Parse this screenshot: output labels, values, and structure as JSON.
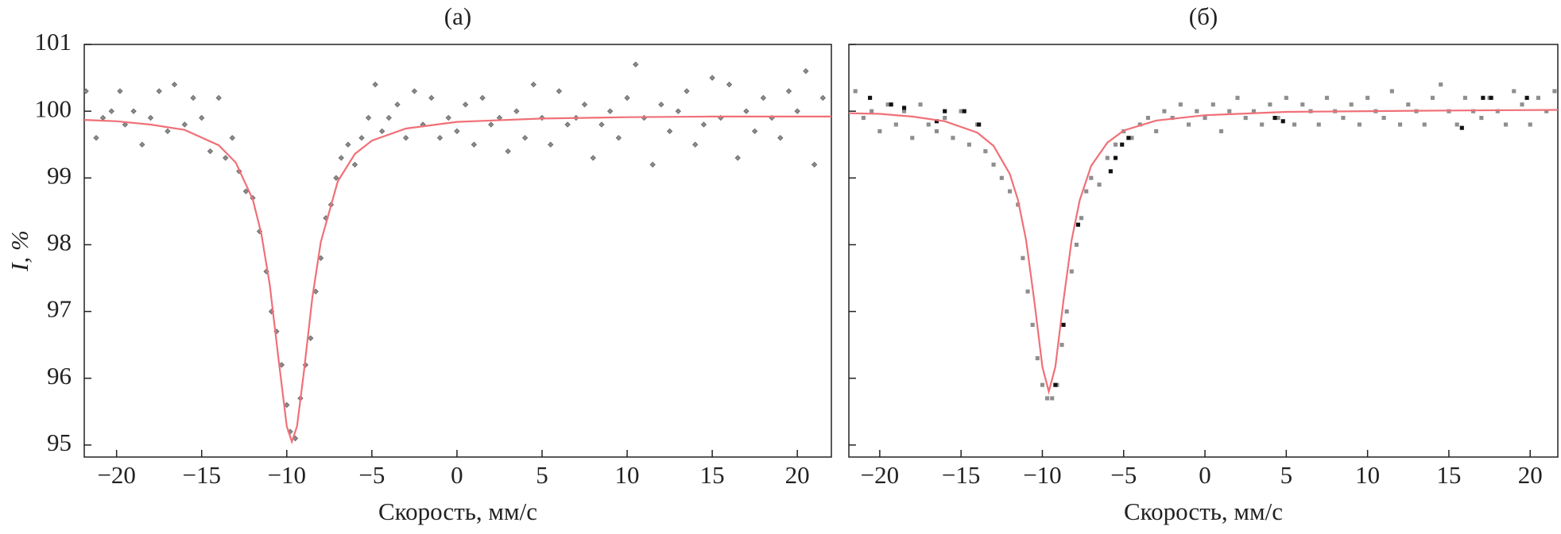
{
  "chart_data": [
    {
      "type": "scatter",
      "title": "(а)",
      "x_label": "Скорость, мм/с",
      "y_label": "I, %",
      "xlim": [
        -21.9,
        22
      ],
      "ylim": [
        94.82,
        101.0
      ],
      "xticks": [
        {
          "value": -20,
          "label": "−20"
        },
        {
          "value": -15,
          "label": "−15"
        },
        {
          "value": -10,
          "label": "−10"
        },
        {
          "value": -5,
          "label": "−5"
        },
        0,
        5,
        10,
        15,
        20
      ],
      "yticks": [
        95,
        96,
        97,
        98,
        99,
        100,
        101
      ],
      "ytick_labels": true,
      "series": [
        {
          "mode": "markers",
          "marker": "diamond",
          "color": "#8a8a8a",
          "x": [
            -21.8,
            -21.2,
            -20.8,
            -20.3,
            -19.8,
            -19.5,
            -19.0,
            -18.5,
            -18.0,
            -17.5,
            -17.0,
            -16.6,
            -16.0,
            -15.5,
            -15.0,
            -14.5,
            -14.0,
            -13.6,
            -13.2,
            -12.8,
            -12.4,
            -12.0,
            -11.6,
            -11.2,
            -10.9,
            -10.6,
            -10.3,
            -10.0,
            -9.8,
            -9.5,
            -9.2,
            -8.9,
            -8.6,
            -8.3,
            -8.0,
            -7.7,
            -7.4,
            -7.1,
            -6.8,
            -6.4,
            -6.0,
            -5.6,
            -5.2,
            -4.8,
            -4.4,
            -4.0,
            -3.5,
            -3.0,
            -2.5,
            -2.0,
            -1.5,
            -1.0,
            -0.5,
            0.0,
            0.5,
            1.0,
            1.5,
            2.0,
            2.5,
            3.0,
            3.5,
            4.0,
            4.5,
            5.0,
            5.5,
            6.0,
            6.5,
            7.0,
            7.5,
            8.0,
            8.5,
            9.0,
            9.5,
            10.0,
            10.5,
            11.0,
            11.5,
            12.0,
            12.5,
            13.0,
            13.5,
            14.0,
            14.5,
            15.0,
            15.5,
            16.0,
            16.5,
            17.0,
            17.5,
            18.0,
            18.5,
            19.0,
            19.5,
            20.0,
            20.5,
            21.0,
            21.5
          ],
          "values": [
            100.3,
            99.6,
            99.9,
            100.0,
            100.3,
            99.8,
            100.0,
            99.5,
            99.9,
            100.3,
            99.7,
            100.4,
            99.8,
            100.2,
            99.9,
            99.4,
            100.2,
            99.3,
            99.6,
            99.1,
            98.8,
            98.7,
            98.2,
            97.6,
            97.0,
            96.7,
            96.2,
            95.6,
            95.2,
            95.1,
            95.7,
            96.2,
            96.6,
            97.3,
            97.8,
            98.4,
            98.6,
            99.0,
            99.3,
            99.5,
            99.2,
            99.6,
            99.9,
            100.4,
            99.7,
            99.9,
            100.1,
            99.6,
            100.3,
            99.8,
            100.2,
            99.6,
            99.9,
            99.7,
            100.1,
            99.5,
            100.2,
            99.8,
            99.9,
            99.4,
            100.0,
            99.6,
            100.4,
            99.9,
            99.5,
            100.3,
            99.8,
            99.9,
            100.1,
            99.3,
            99.8,
            100.0,
            99.6,
            100.2,
            100.7,
            99.9,
            99.2,
            100.1,
            99.7,
            100.0,
            100.3,
            99.5,
            99.8,
            100.5,
            99.9,
            100.4,
            99.3,
            100.0,
            99.7,
            100.2,
            99.9,
            99.6,
            100.3,
            100.0,
            100.6,
            99.2,
            100.2
          ]
        },
        {
          "mode": "line",
          "color": "#f07078",
          "x": [
            -21.9,
            -20,
            -18,
            -16,
            -14,
            -13,
            -12,
            -11.5,
            -11,
            -10.5,
            -10,
            -9.7,
            -9.4,
            -9,
            -8.5,
            -8,
            -7,
            -6,
            -5,
            -3,
            0,
            5,
            10,
            15,
            22
          ],
          "values": [
            99.87,
            99.85,
            99.8,
            99.72,
            99.49,
            99.23,
            98.68,
            98.17,
            97.4,
            96.32,
            95.28,
            95.05,
            95.28,
            96.08,
            97.2,
            98.04,
            98.95,
            99.36,
            99.56,
            99.74,
            99.84,
            99.89,
            99.91,
            99.92,
            99.92
          ]
        }
      ]
    },
    {
      "type": "scatter",
      "title": "(б)",
      "x_label": "Скорость, мм/с",
      "xlim": [
        -21.9,
        21.7
      ],
      "ylim": [
        94.82,
        101.0
      ],
      "xticks": [
        {
          "value": -20,
          "label": "−20"
        },
        {
          "value": -15,
          "label": "−15"
        },
        {
          "value": -10,
          "label": "−10"
        },
        {
          "value": -5,
          "label": "−5"
        },
        0,
        5,
        10,
        15,
        20
      ],
      "yticks": [
        95,
        96,
        97,
        98,
        99,
        100,
        101
      ],
      "ytick_labels": false,
      "series": [
        {
          "mode": "markers",
          "marker": "square",
          "color": "#8e8e8e",
          "x": [
            -21.5,
            -21.0,
            -20.5,
            -20.0,
            -19.5,
            -19.0,
            -18.5,
            -18.0,
            -17.5,
            -17.0,
            -16.5,
            -16.0,
            -15.5,
            -15.0,
            -14.5,
            -14.0,
            -13.5,
            -13.0,
            -12.5,
            -12.0,
            -11.5,
            -11.2,
            -10.9,
            -10.6,
            -10.3,
            -10.0,
            -9.7,
            -9.4,
            -9.1,
            -8.8,
            -8.5,
            -8.2,
            -7.9,
            -7.6,
            -7.3,
            -7.0,
            -6.5,
            -6.0,
            -5.5,
            -5.0,
            -4.5,
            -4.0,
            -3.5,
            -3.0,
            -2.5,
            -2.0,
            -1.5,
            -1.0,
            -0.5,
            0.0,
            0.5,
            1.0,
            1.5,
            2.0,
            2.5,
            3.0,
            3.5,
            4.0,
            4.5,
            5.0,
            5.5,
            6.0,
            6.5,
            7.0,
            7.5,
            8.0,
            8.5,
            9.0,
            9.5,
            10.0,
            10.5,
            11.0,
            11.5,
            12.0,
            12.5,
            13.0,
            13.5,
            14.0,
            14.5,
            15.0,
            15.5,
            16.0,
            16.5,
            17.0,
            17.5,
            18.0,
            18.5,
            19.0,
            19.5,
            20.0,
            20.5,
            21.0,
            21.5
          ],
          "values": [
            100.3,
            99.9,
            100.0,
            99.7,
            100.1,
            99.8,
            100.0,
            99.6,
            100.1,
            99.8,
            99.7,
            99.9,
            99.6,
            100.0,
            99.5,
            99.8,
            99.4,
            99.2,
            99.0,
            98.8,
            98.6,
            97.8,
            97.3,
            96.8,
            96.3,
            95.9,
            95.7,
            95.7,
            95.9,
            96.5,
            97.0,
            97.6,
            98.0,
            98.4,
            98.8,
            99.0,
            98.9,
            99.3,
            99.5,
            99.7,
            99.6,
            99.8,
            99.9,
            99.7,
            100.0,
            99.9,
            100.1,
            99.8,
            100.0,
            99.9,
            100.1,
            99.7,
            100.0,
            100.2,
            99.9,
            100.0,
            99.8,
            100.1,
            99.9,
            100.2,
            99.8,
            100.1,
            100.0,
            99.8,
            100.2,
            100.0,
            99.9,
            100.1,
            99.8,
            100.2,
            100.0,
            99.9,
            100.3,
            99.8,
            100.1,
            100.0,
            99.8,
            100.2,
            100.4,
            100.0,
            99.8,
            100.2,
            100.0,
            99.9,
            100.2,
            100.0,
            99.8,
            100.3,
            100.1,
            99.8,
            100.2,
            100.0,
            100.3
          ]
        },
        {
          "mode": "markers",
          "marker": "square",
          "color": "#111111",
          "x": [
            -20.6,
            -19.3,
            -18.5,
            -16.5,
            -16.0,
            -14.8,
            -13.9,
            -9.2,
            -8.7,
            -7.8,
            -5.8,
            -5.5,
            -5.1,
            -4.7,
            4.3,
            4.8,
            15.8,
            17.1,
            17.6,
            19.8
          ],
          "values": [
            100.2,
            100.1,
            100.05,
            99.85,
            100.0,
            100.0,
            99.8,
            95.9,
            96.8,
            98.3,
            99.1,
            99.3,
            99.5,
            99.6,
            99.9,
            99.85,
            99.75,
            100.2,
            100.2,
            100.2
          ]
        },
        {
          "mode": "line",
          "color": "#f07078",
          "x": [
            -21.9,
            -20,
            -18,
            -16,
            -14,
            -13,
            -12,
            -11.5,
            -11,
            -10.5,
            -10,
            -9.6,
            -9.2,
            -8.7,
            -8.2,
            -7.7,
            -7,
            -6,
            -5,
            -3,
            0,
            5,
            10,
            15,
            21.7
          ],
          "values": [
            99.97,
            99.96,
            99.92,
            99.85,
            99.68,
            99.48,
            99.06,
            98.67,
            98.07,
            97.17,
            96.17,
            95.8,
            96.17,
            97.17,
            98.07,
            98.67,
            99.18,
            99.53,
            99.71,
            99.86,
            99.94,
            99.99,
            100.0,
            100.01,
            100.02
          ]
        }
      ]
    }
  ]
}
